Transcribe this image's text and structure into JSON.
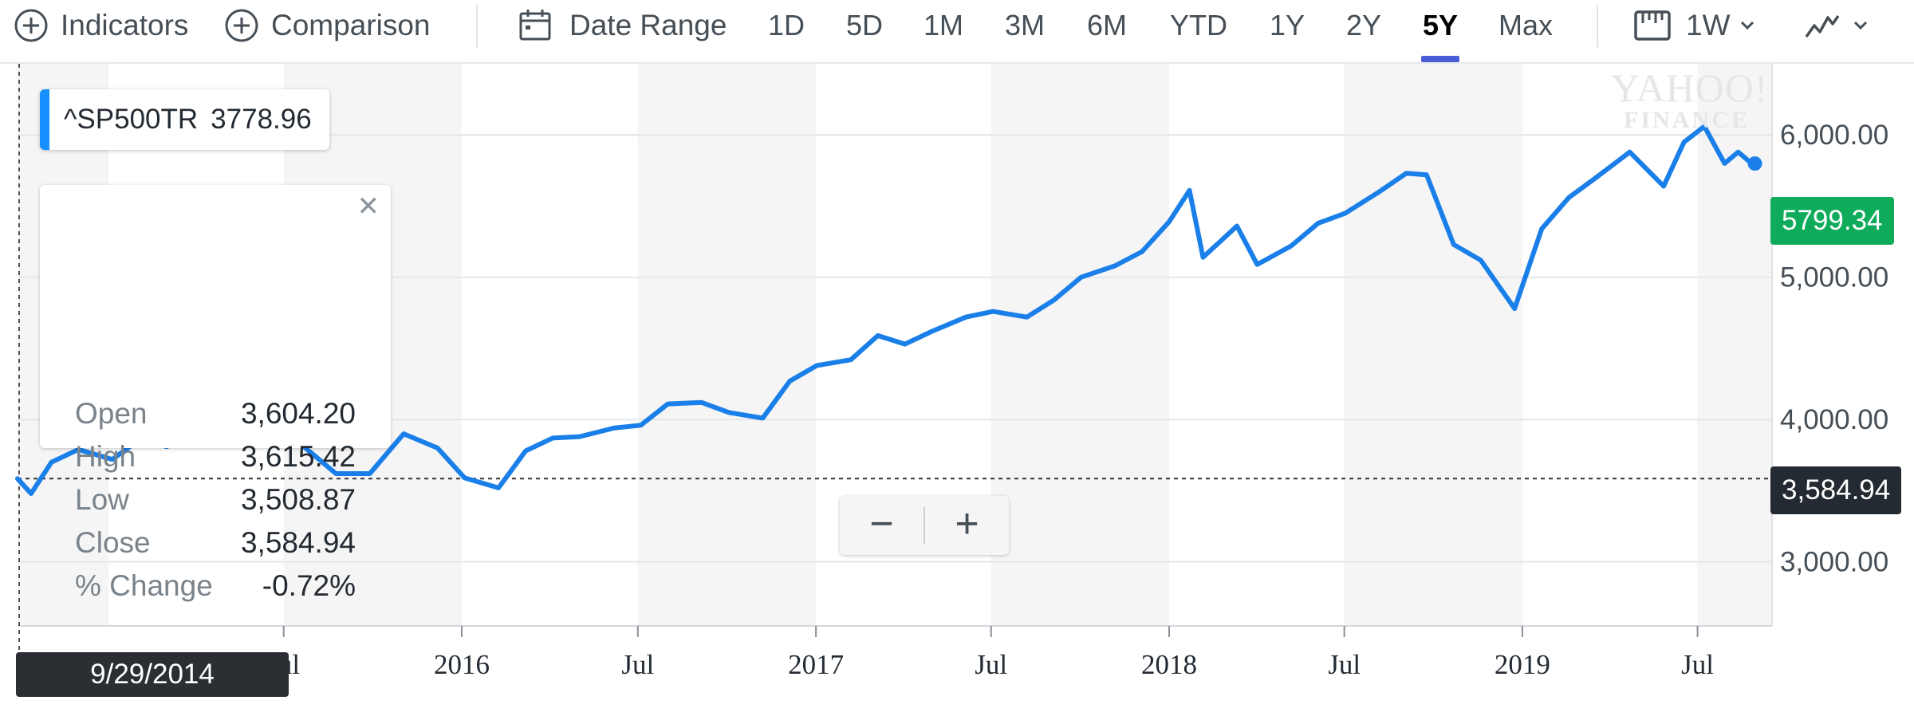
{
  "toolbar": {
    "indicators_label": "Indicators",
    "comparison_label": "Comparison",
    "date_range_label": "Date Range",
    "ranges": [
      "1D",
      "5D",
      "1M",
      "3M",
      "6M",
      "YTD",
      "1Y",
      "2Y",
      "5Y",
      "Max"
    ],
    "active_range": "5Y",
    "interval_label": "1W",
    "icons": [
      "plus-circle-icon",
      "plus-circle-icon",
      "calendar-icon",
      "ruler-icon",
      "chevron-down-icon",
      "line-chart-icon",
      "chevron-down-icon"
    ]
  },
  "symbol": {
    "ticker": "^SP500TR",
    "price": "3778.96",
    "accent_color": "#188fff"
  },
  "ohlc": {
    "rows": [
      {
        "label": "Open",
        "value": "3,604.20"
      },
      {
        "label": "High",
        "value": "3,615.42"
      },
      {
        "label": "Low",
        "value": "3,508.87"
      },
      {
        "label": "Close",
        "value": "3,584.94"
      },
      {
        "label": "% Change",
        "value": "-0.72%"
      }
    ]
  },
  "last_price_tag": {
    "value": "5799.34",
    "color": "#0eab5a"
  },
  "crosshair": {
    "value": "3,584.94",
    "date": "9/29/2014"
  },
  "zoom": {
    "minus": "−",
    "plus": "+"
  },
  "watermark": {
    "line1": "YAHOO!",
    "line2": "FINANCE"
  },
  "chart_data": {
    "type": "line",
    "series": [
      {
        "color": "#1a7fe8",
        "x": [
          "2014-09-29",
          "2014-10-13",
          "2014-11-03",
          "2014-12-01",
          "2015-01-05",
          "2015-02-02",
          "2015-03-02",
          "2015-04-06",
          "2015-05-04",
          "2015-06-01",
          "2015-07-06",
          "2015-08-03",
          "2015-08-24",
          "2015-09-28",
          "2015-11-02",
          "2015-12-07",
          "2016-01-04",
          "2016-02-08",
          "2016-03-07",
          "2016-04-04",
          "2016-05-02",
          "2016-06-06",
          "2016-07-04",
          "2016-08-01",
          "2016-09-05",
          "2016-10-03",
          "2016-11-07",
          "2016-12-05",
          "2017-01-02",
          "2017-02-06",
          "2017-03-06",
          "2017-04-03",
          "2017-05-01",
          "2017-06-05",
          "2017-07-03",
          "2017-08-07",
          "2017-09-04",
          "2017-10-02",
          "2017-11-06",
          "2017-12-04",
          "2018-01-01",
          "2018-01-22",
          "2018-02-05",
          "2018-03-12",
          "2018-04-02",
          "2018-05-07",
          "2018-06-04",
          "2018-07-02",
          "2018-08-06",
          "2018-09-03",
          "2018-09-24",
          "2018-10-22",
          "2018-11-19",
          "2018-12-24",
          "2019-01-21",
          "2019-02-18",
          "2019-03-18",
          "2019-04-22",
          "2019-05-27",
          "2019-06-17",
          "2019-07-08",
          "2019-07-29",
          "2019-08-12",
          "2019-08-26"
        ],
        "values": [
          3585,
          3480,
          3700,
          3790,
          3720,
          3860,
          3810,
          3920,
          3930,
          3880,
          3900,
          3740,
          3620,
          3620,
          3900,
          3800,
          3590,
          3520,
          3780,
          3870,
          3880,
          3940,
          3960,
          4110,
          4120,
          4050,
          4010,
          4270,
          4380,
          4420,
          4590,
          4530,
          4620,
          4720,
          4760,
          4720,
          4840,
          5000,
          5080,
          5180,
          5390,
          5610,
          5140,
          5360,
          5090,
          5220,
          5380,
          5450,
          5600,
          5730,
          5720,
          5230,
          5120,
          4780,
          5340,
          5560,
          5700,
          5880,
          5640,
          5950,
          6060,
          5800,
          5880,
          5799
        ]
      }
    ],
    "ylim": [
      2550,
      6500
    ],
    "y_ticks": [
      "3,000.00",
      "4,000.00",
      "5,000.00",
      "6,000.00"
    ],
    "x_ticks": [
      "Jul",
      "2016",
      "Jul",
      "2017",
      "Jul",
      "2018",
      "Jul",
      "2019",
      "Jul"
    ],
    "crosshair_value": 3584.94,
    "grid": true,
    "legend": "none"
  }
}
